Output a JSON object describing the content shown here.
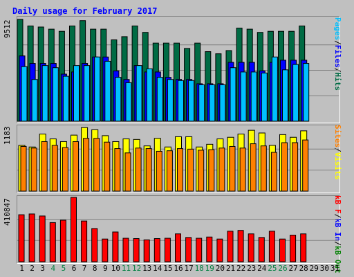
{
  "title": "Daily usage for February 2017",
  "colors": {
    "hits": "#006b44",
    "files": "#0000ff",
    "pages": "#00c0ff",
    "visits": "#ffff00",
    "sites": "#ff8000",
    "kbf": "#ff0000",
    "kbin": "#0000ff",
    "kbout": "#008000",
    "weekend": "#008040"
  },
  "chart_data": [
    {
      "type": "bar",
      "name": "hits-files-pages",
      "ymax_label": "9512",
      "ylim": [
        0,
        9512
      ],
      "right_labels": [
        "Pages",
        "Files",
        "Hits"
      ],
      "categories": [
        "1",
        "2",
        "3",
        "4",
        "5",
        "6",
        "7",
        "8",
        "9",
        "10",
        "11",
        "12",
        "13",
        "14",
        "15",
        "16",
        "17",
        "18",
        "19",
        "20",
        "21",
        "22",
        "23",
        "24",
        "25",
        "26",
        "27",
        "28",
        "29",
        "30",
        "31"
      ],
      "series": [
        {
          "name": "Hits",
          "values": [
            9512,
            8900,
            8800,
            8600,
            8400,
            8900,
            9400,
            8600,
            8600,
            7600,
            7900,
            8900,
            8300,
            7300,
            7300,
            7300,
            6800,
            7300,
            6500,
            6300,
            6600,
            8700,
            8600,
            8300,
            8400,
            8400,
            8400,
            8900,
            0,
            0,
            0
          ]
        },
        {
          "name": "Files",
          "values": [
            6100,
            5400,
            5400,
            5400,
            4400,
            4600,
            5400,
            6000,
            6000,
            4700,
            3900,
            5200,
            4600,
            4600,
            4100,
            3900,
            3900,
            3500,
            3500,
            3500,
            5500,
            5500,
            5500,
            4700,
            5500,
            5700,
            5700,
            5700,
            0,
            0,
            0
          ]
        },
        {
          "name": "Pages",
          "values": [
            5100,
            3900,
            5200,
            5000,
            4200,
            5200,
            5200,
            6000,
            5600,
            4100,
            3600,
            5200,
            4900,
            4100,
            3900,
            3800,
            3800,
            3400,
            3400,
            3400,
            5000,
            4600,
            4600,
            4500,
            6000,
            4800,
            5300,
            5400,
            0,
            0,
            0
          ]
        }
      ]
    },
    {
      "type": "bar",
      "name": "visits-sites",
      "ymax_label": "1183",
      "ylim": [
        0,
        1183
      ],
      "right_labels": [
        "Sites",
        "Visits"
      ],
      "categories": [
        "1",
        "2",
        "3",
        "4",
        "5",
        "6",
        "7",
        "8",
        "9",
        "10",
        "11",
        "12",
        "13",
        "14",
        "15",
        "16",
        "17",
        "18",
        "19",
        "20",
        "21",
        "22",
        "23",
        "24",
        "25",
        "26",
        "27",
        "28",
        "29",
        "30",
        "31"
      ],
      "series": [
        {
          "name": "Visits",
          "values": [
            850,
            820,
            1060,
            970,
            920,
            1040,
            1180,
            1140,
            1030,
            920,
            970,
            960,
            840,
            980,
            820,
            1010,
            1010,
            820,
            870,
            970,
            1000,
            1060,
            1130,
            1080,
            850,
            1050,
            1000,
            1120,
            0,
            0,
            0
          ]
        },
        {
          "name": "Sites",
          "values": [
            830,
            800,
            920,
            850,
            810,
            920,
            980,
            980,
            910,
            790,
            710,
            800,
            790,
            740,
            750,
            790,
            780,
            760,
            770,
            800,
            830,
            800,
            880,
            840,
            720,
            900,
            900,
            950,
            0,
            0,
            0
          ]
        }
      ]
    },
    {
      "type": "bar",
      "name": "kbf-kbin-kbout",
      "ymax_label": "410847",
      "ylim": [
        0,
        410847
      ],
      "right_labels": [
        "kB F",
        "kB In",
        "kB Out"
      ],
      "categories": [
        "1",
        "2",
        "3",
        "4",
        "5",
        "6",
        "7",
        "8",
        "9",
        "10",
        "11",
        "12",
        "13",
        "14",
        "15",
        "16",
        "17",
        "18",
        "19",
        "20",
        "21",
        "22",
        "23",
        "24",
        "25",
        "26",
        "27",
        "28",
        "29",
        "30",
        "31"
      ],
      "series": [
        {
          "name": "kB F",
          "values": [
            300000,
            305000,
            292000,
            250000,
            265000,
            410847,
            260000,
            212000,
            145000,
            190000,
            150000,
            148000,
            140000,
            148000,
            150000,
            178000,
            155000,
            150000,
            158000,
            145000,
            195000,
            200000,
            178000,
            155000,
            195000,
            145000,
            170000,
            178000,
            0,
            0,
            0
          ]
        }
      ]
    }
  ],
  "days": [
    "1",
    "2",
    "3",
    "4",
    "5",
    "6",
    "7",
    "8",
    "9",
    "10",
    "11",
    "12",
    "13",
    "14",
    "15",
    "16",
    "17",
    "18",
    "19",
    "20",
    "21",
    "22",
    "23",
    "24",
    "25",
    "26",
    "27",
    "28",
    "29",
    "30",
    "31"
  ],
  "weekend_days": [
    "4",
    "5",
    "11",
    "12",
    "18",
    "19",
    "25",
    "26"
  ]
}
